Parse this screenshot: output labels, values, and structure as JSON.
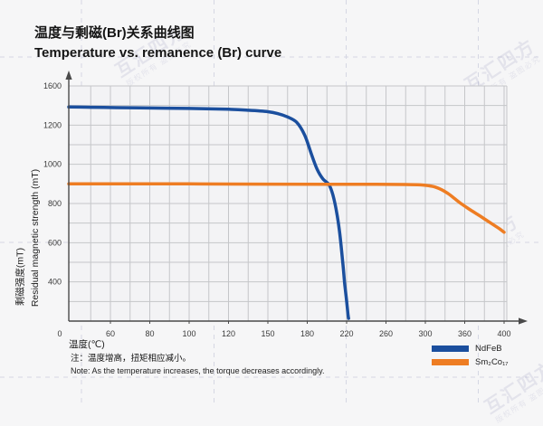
{
  "title": {
    "zh": "温度与剩磁(Br)关系曲线图",
    "en": "Temperature vs. remanence (Br) curve"
  },
  "watermark": {
    "main": "互汇四方",
    "sub": "版权所有 盗图必究"
  },
  "note": {
    "zh": "注：温度增高，扭矩相应减小。",
    "en": "Note: As the temperature increases, the torque decreases accordingly."
  },
  "colors": {
    "ndfeb_blue": "#1b4f9e",
    "sm2co17_orange": "#ee7d23",
    "gridline": "#c5c6c9",
    "axis": "#4a4a4a",
    "tick_text": "#3a3a3a",
    "plot_bg": "#f3f3f5",
    "bg_dash": "#d5d7e3"
  },
  "chart_data": {
    "type": "line",
    "title": "Temperature vs. remanence (Br) curve",
    "xlabel": "温度(℃)",
    "ylabel_zh": "剩磁强度(mT)",
    "ylabel_en": "Residual magnetic strength (mT)",
    "x_ticks": [
      0,
      60,
      80,
      100,
      120,
      150,
      180,
      220,
      260,
      300,
      360,
      400
    ],
    "y_ticks": [
      1600,
      1200,
      1000,
      800,
      600,
      400
    ],
    "origin_label": "0",
    "xlim": [
      0,
      400
    ],
    "ylim": [
      0,
      1600
    ],
    "grid": "on",
    "legend_position": "bottom-right",
    "series": [
      {
        "name": "NdFeB",
        "color": "#1b4f9e",
        "points": [
          [
            0,
            1385
          ],
          [
            25,
            1383
          ],
          [
            50,
            1380
          ],
          [
            75,
            1376
          ],
          [
            100,
            1370
          ],
          [
            120,
            1362
          ],
          [
            135,
            1352
          ],
          [
            150,
            1337
          ],
          [
            158,
            1316
          ],
          [
            165,
            1283
          ],
          [
            172,
            1228
          ],
          [
            178,
            1150
          ],
          [
            184,
            1055
          ],
          [
            190,
            975
          ],
          [
            196,
            925
          ],
          [
            202,
            897
          ],
          [
            206,
            845
          ],
          [
            210,
            752
          ],
          [
            213,
            648
          ],
          [
            216,
            505
          ],
          [
            218,
            385
          ],
          [
            220,
            205
          ],
          [
            221.5,
            60
          ],
          [
            222,
            28
          ]
        ]
      },
      {
        "name": "Sm₂Co₁₇",
        "color": "#ee7d23",
        "points": [
          [
            0,
            900
          ],
          [
            50,
            900
          ],
          [
            100,
            900
          ],
          [
            150,
            899
          ],
          [
            200,
            898
          ],
          [
            250,
            898
          ],
          [
            280,
            897
          ],
          [
            295,
            895
          ],
          [
            305,
            891
          ],
          [
            315,
            884
          ],
          [
            325,
            870
          ],
          [
            335,
            850
          ],
          [
            345,
            824
          ],
          [
            355,
            798
          ],
          [
            365,
            770
          ],
          [
            375,
            738
          ],
          [
            385,
            705
          ],
          [
            395,
            672
          ],
          [
            400,
            653
          ]
        ]
      }
    ]
  }
}
